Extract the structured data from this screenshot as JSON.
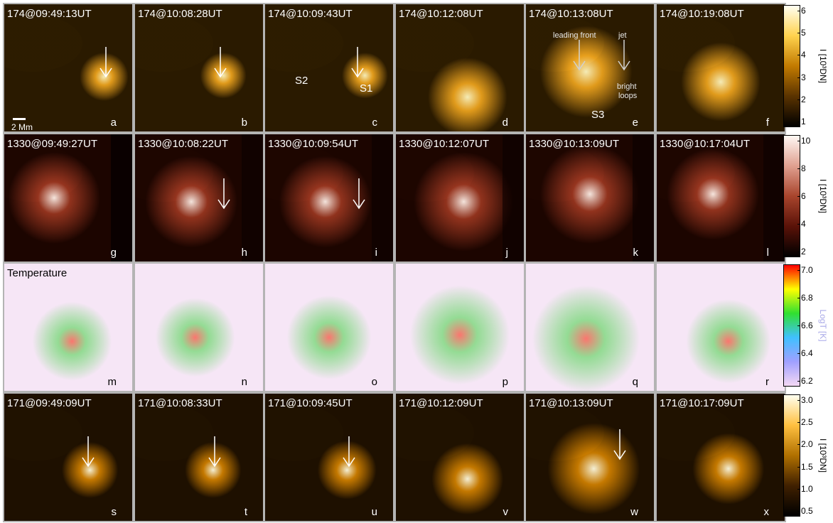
{
  "rows": [
    {
      "key": "aia174",
      "panels": [
        {
          "title": "174@09:49:13UT",
          "label": "a"
        },
        {
          "title": "174@10:08:28UT",
          "label": "b"
        },
        {
          "title": "174@10:09:43UT",
          "label": "c"
        },
        {
          "title": "174@10:12:08UT",
          "label": "d"
        },
        {
          "title": "174@10:13:08UT",
          "label": "e"
        },
        {
          "title": "174@10:19:08UT",
          "label": "f"
        }
      ],
      "colorbar": {
        "title": "I [10³DN]",
        "ticks": [
          "6",
          "5",
          "4",
          "3",
          "2",
          "1"
        ],
        "colors": [
          "#fffff2",
          "#ffd24d",
          "#c27a00",
          "#5a3300",
          "#000000"
        ]
      }
    },
    {
      "key": "iris1330",
      "panels": [
        {
          "title": "1330@09:49:27UT",
          "label": "g"
        },
        {
          "title": "1330@10:08:22UT",
          "label": "h"
        },
        {
          "title": "1330@10:09:54UT",
          "label": "i"
        },
        {
          "title": "1330@10:12:07UT",
          "label": "j"
        },
        {
          "title": "1330@10:13:09UT",
          "label": "k"
        },
        {
          "title": "1330@10:17:04UT",
          "label": "l"
        }
      ],
      "colorbar": {
        "title": "I [10³DN]",
        "ticks": [
          "10",
          "8",
          "6",
          "4",
          "2"
        ],
        "colors": [
          "#fff8f4",
          "#e0a090",
          "#a8442c",
          "#5a1208",
          "#000000"
        ]
      }
    },
    {
      "key": "temperature",
      "panels": [
        {
          "title": "Temperature",
          "label": "m"
        },
        {
          "title": "",
          "label": "n"
        },
        {
          "title": "",
          "label": "o"
        },
        {
          "title": "",
          "label": "p"
        },
        {
          "title": "",
          "label": "q"
        },
        {
          "title": "",
          "label": "r"
        }
      ],
      "colorbar": {
        "title": "LogT [K]",
        "ticks": [
          "7.0",
          "6.8",
          "6.6",
          "6.4",
          "6.2"
        ],
        "colors": [
          "#ff0000",
          "#ffff00",
          "#30e030",
          "#40c0ff",
          "#a0a0ff",
          "#f4d8f4"
        ]
      }
    },
    {
      "key": "aia171",
      "panels": [
        {
          "title": "171@09:49:09UT",
          "label": "s"
        },
        {
          "title": "171@10:08:33UT",
          "label": "t"
        },
        {
          "title": "171@10:09:45UT",
          "label": "u"
        },
        {
          "title": "171@10:12:09UT",
          "label": "v"
        },
        {
          "title": "171@10:13:09UT",
          "label": "w"
        },
        {
          "title": "171@10:17:09UT",
          "label": "x"
        }
      ],
      "colorbar": {
        "title": "I [10³DN]",
        "ticks": [
          "3.0",
          "2.5",
          "2.0",
          "1.5",
          "1.0",
          "0.5"
        ],
        "colors": [
          "#fffff0",
          "#ffc040",
          "#b07000",
          "#402000",
          "#000000"
        ]
      }
    }
  ],
  "annotations": {
    "scale": "2 Mm",
    "s1": "S1",
    "s2": "S2",
    "s3": "S3",
    "leading_front": "leading front",
    "jet": "jet",
    "bright_loops_1": "bright",
    "bright_loops_2": "loops"
  }
}
